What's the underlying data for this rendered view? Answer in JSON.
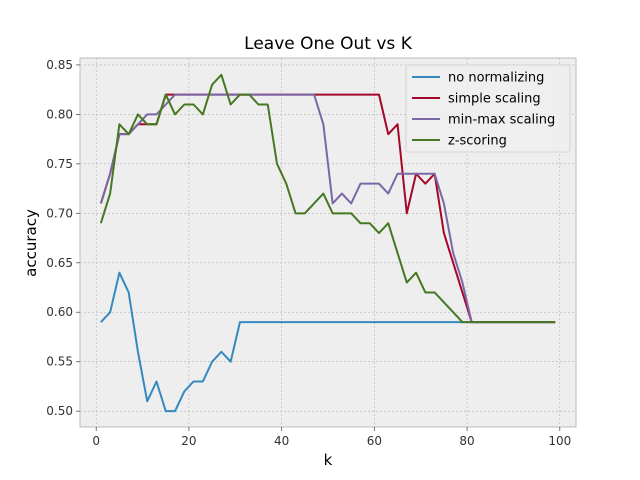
{
  "chart_data": {
    "type": "line",
    "title": "Leave One Out vs K",
    "xlabel": "k",
    "ylabel": "accuracy",
    "xlim": [
      -3.5,
      103.5
    ],
    "ylim": [
      0.484,
      0.857
    ],
    "xticks": [
      0,
      20,
      40,
      60,
      80,
      100
    ],
    "yticks": [
      0.5,
      0.55,
      0.6,
      0.65,
      0.7,
      0.75,
      0.8,
      0.85
    ],
    "ytick_labels": [
      "0.50",
      "0.55",
      "0.60",
      "0.65",
      "0.70",
      "0.75",
      "0.80",
      "0.85"
    ],
    "grid": true,
    "legend_position": "top-right",
    "x": [
      1,
      3,
      5,
      7,
      9,
      11,
      13,
      15,
      17,
      19,
      21,
      23,
      25,
      27,
      29,
      31,
      33,
      35,
      37,
      39,
      41,
      43,
      45,
      47,
      49,
      51,
      53,
      55,
      57,
      59,
      61,
      63,
      65,
      67,
      69,
      71,
      73,
      75,
      77,
      79,
      81,
      83,
      85,
      87,
      89,
      91,
      93,
      95,
      97,
      99
    ],
    "series": [
      {
        "name": "no normalizing",
        "color": "#348ABD",
        "values": [
          0.59,
          0.6,
          0.64,
          0.62,
          0.56,
          0.51,
          0.53,
          0.5,
          0.5,
          0.52,
          0.53,
          0.53,
          0.55,
          0.56,
          0.55,
          0.59,
          0.59,
          0.59,
          0.59,
          0.59,
          0.59,
          0.59,
          0.59,
          0.59,
          0.59,
          0.59,
          0.59,
          0.59,
          0.59,
          0.59,
          0.59,
          0.59,
          0.59,
          0.59,
          0.59,
          0.59,
          0.59,
          0.59,
          0.59,
          0.59,
          0.59,
          0.59,
          0.59,
          0.59,
          0.59,
          0.59,
          0.59,
          0.59,
          0.59,
          0.59
        ]
      },
      {
        "name": "simple scaling",
        "color": "#A60628",
        "values": [
          0.71,
          0.74,
          0.78,
          0.78,
          0.79,
          0.79,
          0.79,
          0.82,
          0.82,
          0.82,
          0.82,
          0.82,
          0.82,
          0.82,
          0.82,
          0.82,
          0.82,
          0.82,
          0.82,
          0.82,
          0.82,
          0.82,
          0.82,
          0.82,
          0.82,
          0.82,
          0.82,
          0.82,
          0.82,
          0.82,
          0.82,
          0.78,
          0.79,
          0.7,
          0.74,
          0.73,
          0.74,
          0.68,
          0.65,
          0.62,
          0.59,
          0.59,
          0.59,
          0.59,
          0.59,
          0.59,
          0.59,
          0.59,
          0.59,
          0.59
        ]
      },
      {
        "name": "min-max scaling",
        "color": "#7A68A6",
        "values": [
          0.71,
          0.74,
          0.78,
          0.78,
          0.79,
          0.8,
          0.8,
          0.81,
          0.82,
          0.82,
          0.82,
          0.82,
          0.82,
          0.82,
          0.82,
          0.82,
          0.82,
          0.82,
          0.82,
          0.82,
          0.82,
          0.82,
          0.82,
          0.82,
          0.79,
          0.71,
          0.72,
          0.71,
          0.73,
          0.73,
          0.73,
          0.72,
          0.74,
          0.74,
          0.74,
          0.74,
          0.74,
          0.71,
          0.66,
          0.63,
          0.59,
          0.59,
          0.59,
          0.59,
          0.59,
          0.59,
          0.59,
          0.59,
          0.59,
          0.59
        ]
      },
      {
        "name": "z-scoring",
        "color": "#467821",
        "values": [
          0.69,
          0.72,
          0.79,
          0.78,
          0.8,
          0.79,
          0.79,
          0.82,
          0.8,
          0.81,
          0.81,
          0.8,
          0.83,
          0.84,
          0.81,
          0.82,
          0.82,
          0.81,
          0.81,
          0.75,
          0.73,
          0.7,
          0.7,
          0.71,
          0.72,
          0.7,
          0.7,
          0.7,
          0.69,
          0.69,
          0.68,
          0.69,
          0.66,
          0.63,
          0.64,
          0.62,
          0.62,
          0.61,
          0.6,
          0.59,
          0.59,
          0.59,
          0.59,
          0.59,
          0.59,
          0.59,
          0.59,
          0.59,
          0.59,
          0.59
        ]
      }
    ]
  }
}
